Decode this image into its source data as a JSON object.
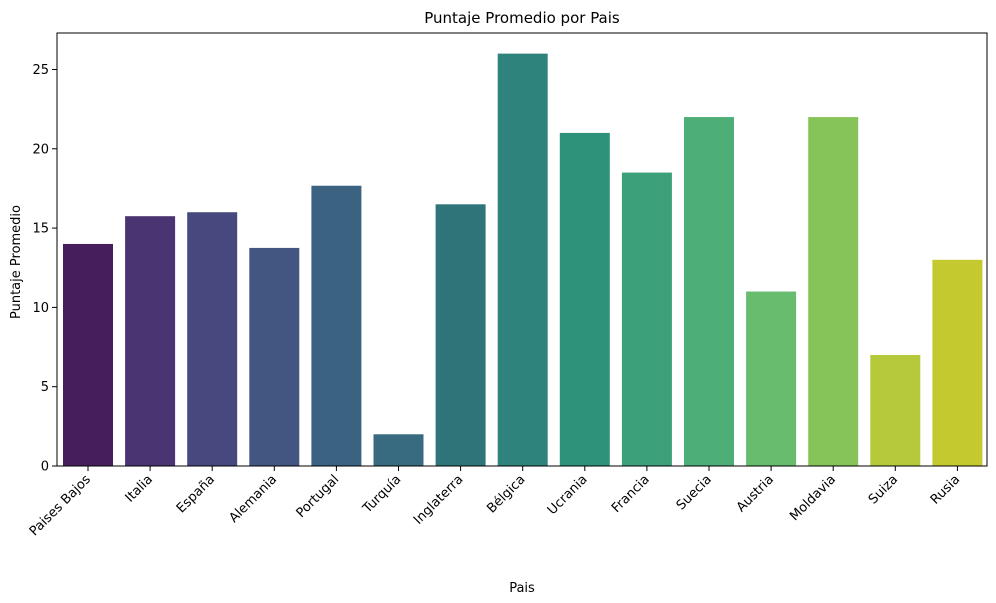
{
  "chart_data": {
    "type": "bar",
    "title": "Puntaje Promedio por Pais",
    "xlabel": "Pais",
    "ylabel": "Puntaje Promedio",
    "ylim": [
      0,
      27.3
    ],
    "yticks": [
      0,
      5,
      10,
      15,
      20,
      25
    ],
    "grid": false,
    "categories": [
      "Paises Bajos",
      "Italia",
      "España",
      "Alemania",
      "Portugal",
      "Turquía",
      "Inglaterra",
      "Bélgica",
      "Ucrania",
      "Francia",
      "Suecia",
      "Austria",
      "Moldavia",
      "Suiza",
      "Rusia"
    ],
    "values": [
      14,
      15.75,
      16,
      13.75,
      17.67,
      2,
      16.5,
      26,
      21,
      18.5,
      22,
      11,
      22,
      7,
      13
    ],
    "colors": [
      "#471e5c",
      "#4a3572",
      "#46487e",
      "#435682",
      "#3c6281",
      "#386b80",
      "#2f7479",
      "#2e847c",
      "#2e927b",
      "#3ca07b",
      "#4dae78",
      "#68bc6d",
      "#86c45a",
      "#b6c93a",
      "#c3c92f"
    ]
  }
}
